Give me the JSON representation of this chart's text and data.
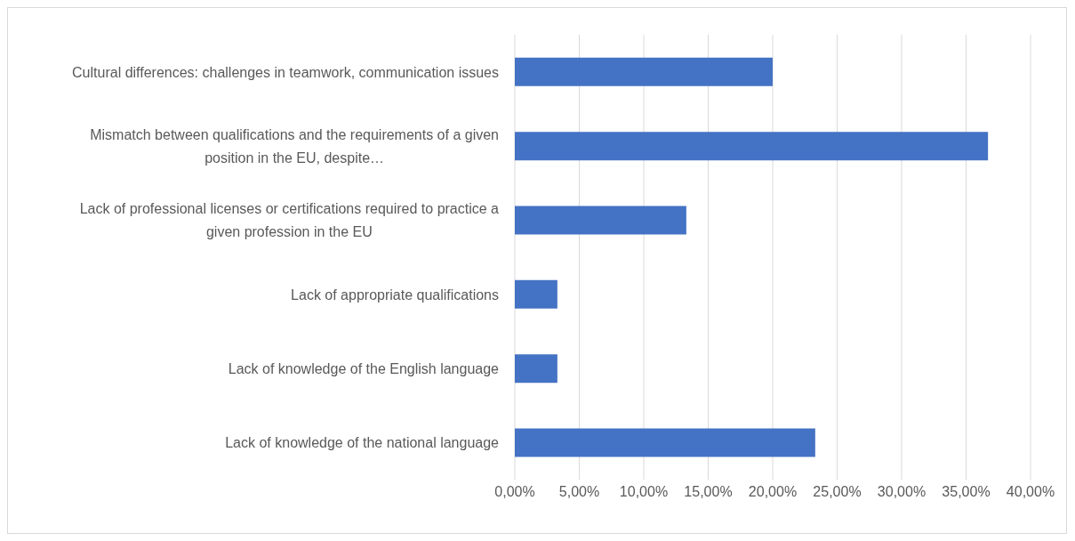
{
  "chart_data": {
    "type": "bar",
    "orientation": "horizontal",
    "categories": [
      "Cultural differences: challenges in teamwork, communication issues",
      "Mismatch between qualifications and the requirements of a given position in the EU, despite…",
      "Lack of professional licenses or certifications required to practice a given profession in the EU",
      "Lack of appropriate qualifications",
      "Lack of knowledge of the English language",
      "Lack of knowledge of the national language"
    ],
    "values": [
      20.0,
      36.7,
      13.3,
      3.3,
      3.3,
      23.3
    ],
    "color": "#4472c4",
    "xlim": [
      0,
      40
    ],
    "xticks": [
      {
        "value": 0,
        "label": "0,00%"
      },
      {
        "value": 5,
        "label": "5,00%"
      },
      {
        "value": 10,
        "label": "10,00%"
      },
      {
        "value": 15,
        "label": "15,00%"
      },
      {
        "value": 20,
        "label": "20,00%"
      },
      {
        "value": 25,
        "label": "25,00%"
      },
      {
        "value": 30,
        "label": "30,00%"
      },
      {
        "value": 35,
        "label": "35,00%"
      },
      {
        "value": 40,
        "label": "40,00%"
      }
    ],
    "grid": "x",
    "legend": false
  }
}
